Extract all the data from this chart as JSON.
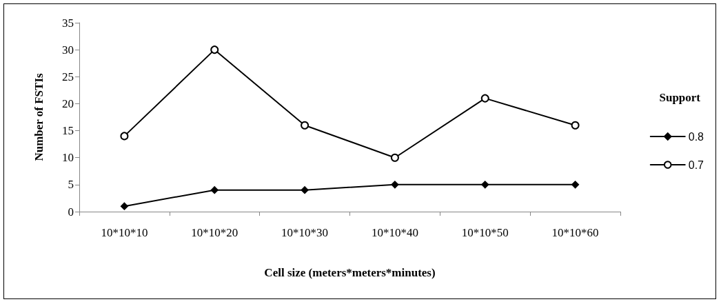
{
  "chart_data": {
    "type": "line",
    "xlabel": "Cell size (meters*meters*minutes)",
    "ylabel": "Number of FSTIs",
    "legend_title": "Support",
    "categories": [
      "10*10*10",
      "10*10*20",
      "10*10*30",
      "10*10*40",
      "10*10*50",
      "10*10*60"
    ],
    "series": [
      {
        "name": "0.8",
        "color": "#000000",
        "marker": "diamond",
        "values": [
          1,
          4,
          4,
          5,
          5,
          5
        ]
      },
      {
        "name": "0.7",
        "color": "#000000",
        "marker": "circle",
        "values": [
          14,
          30,
          16,
          10,
          21,
          16
        ]
      }
    ],
    "ylim": [
      0,
      35
    ],
    "yticks": [
      0,
      5,
      10,
      15,
      20,
      25,
      30,
      35
    ],
    "grid": false,
    "legend": "right",
    "line_style": "solid"
  }
}
